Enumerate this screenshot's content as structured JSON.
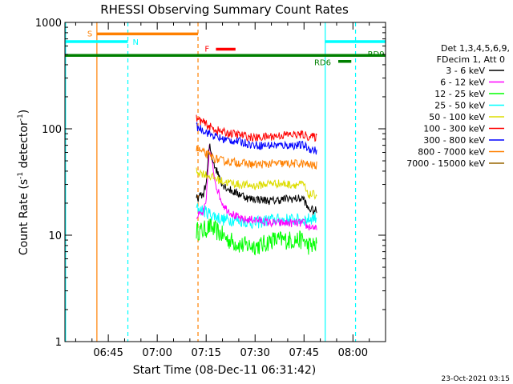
{
  "chart_data": {
    "type": "line",
    "title": "RHESSI Observing Summary Count Rates",
    "xlabel": "Start Time (08-Dec-11 06:31:42)",
    "ylabel_main": "Count Rate (s",
    "ylabel_sup": "-1",
    "ylabel_tail": " detector",
    "ylabel_sup2": "-1",
    "ylabel_end": ")",
    "yscale": "log",
    "ylim": [
      1,
      1000
    ],
    "xlim_minutes": [
      391.7,
      490
    ],
    "x_ticks": [
      {
        "minutes": 405,
        "label": "06:45"
      },
      {
        "minutes": 420,
        "label": "07:00"
      },
      {
        "minutes": 435,
        "label": "07:15"
      },
      {
        "minutes": 450,
        "label": "07:30"
      },
      {
        "minutes": 465,
        "label": "07:45"
      },
      {
        "minutes": 480,
        "label": "08:00"
      }
    ],
    "y_ticks": [
      {
        "value": 1,
        "label": "1"
      },
      {
        "value": 10,
        "label": "10"
      },
      {
        "value": 100,
        "label": "100"
      },
      {
        "value": 1000,
        "label": "1000"
      }
    ],
    "legend": {
      "header1": "Det 1,3,4,5,6,9,",
      "header2": "FDecim 1, Att 0",
      "placement": "right"
    },
    "series": [
      {
        "name": "3 - 6 keV",
        "color": "#000000",
        "points": [
          [
            432,
            22
          ],
          [
            434,
            24
          ],
          [
            435,
            30
          ],
          [
            436,
            70
          ],
          [
            437,
            52
          ],
          [
            438,
            42
          ],
          [
            439,
            36
          ],
          [
            440,
            30
          ],
          [
            442,
            27
          ],
          [
            444,
            25
          ],
          [
            446,
            24
          ],
          [
            448,
            22
          ],
          [
            450,
            22
          ],
          [
            455,
            21
          ],
          [
            460,
            22
          ],
          [
            465,
            22
          ],
          [
            466,
            18
          ],
          [
            468,
            17
          ],
          [
            469,
            17
          ]
        ]
      },
      {
        "name": "6 - 12 keV",
        "color": "#ff00ff",
        "points": [
          [
            432,
            15
          ],
          [
            434,
            16
          ],
          [
            435,
            20
          ],
          [
            436,
            70
          ],
          [
            437,
            44
          ],
          [
            438,
            30
          ],
          [
            439,
            24
          ],
          [
            440,
            20
          ],
          [
            441,
            18
          ],
          [
            442,
            17
          ],
          [
            444,
            15
          ],
          [
            446,
            14
          ],
          [
            448,
            14
          ],
          [
            450,
            14
          ],
          [
            455,
            13
          ],
          [
            460,
            13
          ],
          [
            465,
            13
          ],
          [
            466,
            12
          ],
          [
            468,
            12
          ],
          [
            469,
            11
          ]
        ]
      },
      {
        "name": "12 - 25 keV",
        "color": "#00ff00",
        "points": [
          [
            432,
            11
          ],
          [
            434,
            11
          ],
          [
            436,
            12
          ],
          [
            438,
            11
          ],
          [
            440,
            10
          ],
          [
            442,
            9
          ],
          [
            446,
            8
          ],
          [
            448,
            8
          ],
          [
            450,
            8
          ],
          [
            452,
            8
          ],
          [
            455,
            9
          ],
          [
            460,
            9
          ],
          [
            465,
            9
          ],
          [
            466,
            8
          ],
          [
            469,
            8
          ]
        ]
      },
      {
        "name": "25 - 50 keV",
        "color": "#00ffff",
        "points": [
          [
            432,
            18
          ],
          [
            434,
            17
          ],
          [
            436,
            16
          ],
          [
            438,
            15
          ],
          [
            440,
            14
          ],
          [
            444,
            14
          ],
          [
            450,
            13
          ],
          [
            455,
            14
          ],
          [
            460,
            14
          ],
          [
            465,
            14
          ],
          [
            466,
            14
          ],
          [
            469,
            15
          ]
        ]
      },
      {
        "name": "50 - 100 keV",
        "color": "#dddd00",
        "points": [
          [
            432,
            40
          ],
          [
            434,
            38
          ],
          [
            436,
            36
          ],
          [
            438,
            34
          ],
          [
            440,
            32
          ],
          [
            445,
            30
          ],
          [
            450,
            29
          ],
          [
            455,
            31
          ],
          [
            460,
            30
          ],
          [
            465,
            30
          ],
          [
            466,
            24
          ],
          [
            469,
            24
          ]
        ]
      },
      {
        "name": "100 - 300 keV",
        "color": "#ff0000",
        "points": [
          [
            432,
            125
          ],
          [
            434,
            115
          ],
          [
            436,
            105
          ],
          [
            438,
            98
          ],
          [
            440,
            93
          ],
          [
            445,
            88
          ],
          [
            450,
            82
          ],
          [
            455,
            85
          ],
          [
            460,
            88
          ],
          [
            465,
            88
          ],
          [
            466,
            85
          ],
          [
            469,
            83
          ]
        ]
      },
      {
        "name": "300 - 800 keV",
        "color": "#0000ff",
        "points": [
          [
            432,
            105
          ],
          [
            434,
            98
          ],
          [
            436,
            90
          ],
          [
            438,
            84
          ],
          [
            440,
            80
          ],
          [
            445,
            76
          ],
          [
            450,
            70
          ],
          [
            455,
            70
          ],
          [
            460,
            70
          ],
          [
            465,
            70
          ],
          [
            466,
            66
          ],
          [
            469,
            62
          ]
        ]
      },
      {
        "name": "800 - 7000 keV",
        "color": "#ff8000",
        "points": [
          [
            432,
            65
          ],
          [
            434,
            60
          ],
          [
            436,
            56
          ],
          [
            438,
            52
          ],
          [
            440,
            50
          ],
          [
            445,
            48
          ],
          [
            450,
            46
          ],
          [
            455,
            47
          ],
          [
            460,
            47
          ],
          [
            465,
            47
          ],
          [
            466,
            46
          ],
          [
            469,
            45
          ]
        ]
      },
      {
        "name": "7000 - 15000 keV",
        "color": "#996600",
        "points": []
      }
    ],
    "annotations": [
      {
        "label": "S",
        "color": "#ff8000",
        "x_start": 401.5,
        "x_end": 432.5,
        "y": 780
      },
      {
        "label": "N",
        "color": "#00ffff",
        "x_start": 391.7,
        "x_end": 411.0,
        "y": 660
      },
      {
        "label": "F",
        "color": "#ff0000",
        "x_start": 438.0,
        "x_end": 444.0,
        "y": 560
      },
      {
        "label": "RD6",
        "color": "#008000",
        "x_start": 475.5,
        "x_end": 479.5,
        "y": 430
      },
      {
        "label": "RD9",
        "color": "#008000",
        "x_start": 391.7,
        "x_end": 490,
        "y": 490
      },
      {
        "label": "",
        "color": "#00ffff",
        "x_start": 471.5,
        "x_end": 490,
        "y": 660
      }
    ],
    "vlines": [
      {
        "x": 391.9,
        "color": "#00ffff",
        "dash": false
      },
      {
        "x": 401.5,
        "color": "#ff8000",
        "dash": false
      },
      {
        "x": 411.0,
        "color": "#00ffff",
        "dash": true
      },
      {
        "x": 432.5,
        "color": "#ff8000",
        "dash": true
      },
      {
        "x": 471.5,
        "color": "#00ffff",
        "dash": false
      },
      {
        "x": 480.8,
        "color": "#00ffff",
        "dash": true
      }
    ],
    "timestamp": "23-Oct-2021 03:15"
  }
}
